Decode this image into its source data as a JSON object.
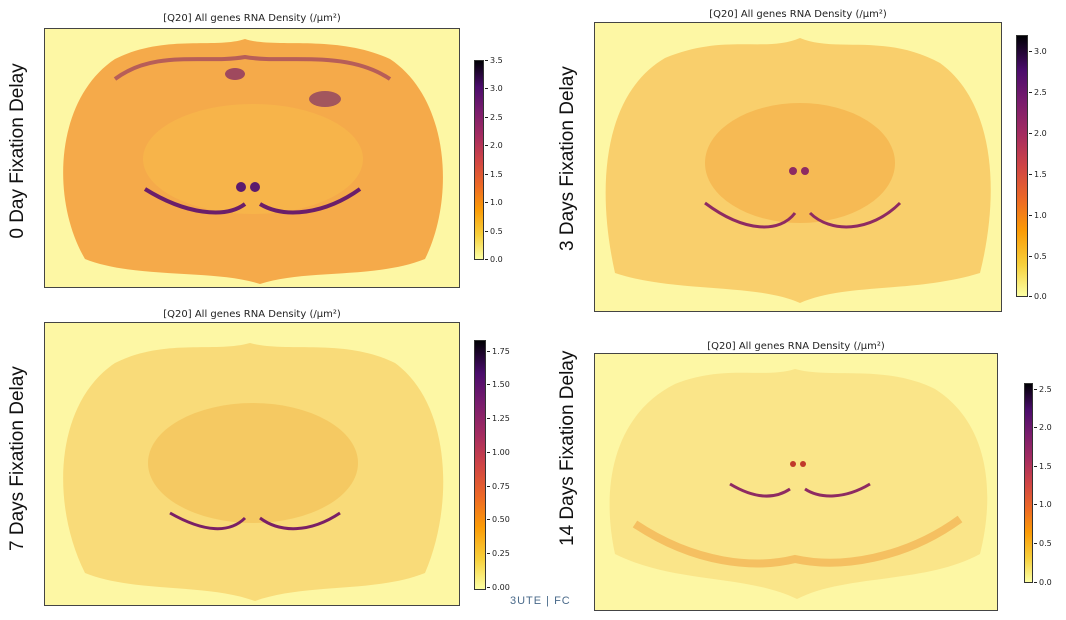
{
  "colors": {
    "background_low": "#fdf7a4",
    "tissue_mid": "#f5a623",
    "tissue_high": "#c0392b",
    "tissue_peak": "#5b1a6e"
  },
  "footer": {
    "text": "3UTE    |    FC"
  },
  "chart_data": [
    {
      "type": "heatmap",
      "title": "[Q20] All genes RNA Density (/µm²)",
      "side_label": "0 Day Fixation Delay",
      "colorbar": {
        "range": [
          0.0,
          3.5
        ],
        "ticks": [
          "0.0",
          "0.5",
          "1.0",
          "1.5",
          "2.0",
          "2.5",
          "3.0",
          "3.5"
        ],
        "colormap": "inferno_r"
      }
    },
    {
      "type": "heatmap",
      "title": "[Q20] All genes RNA Density (/µm²)",
      "side_label": "3 Days Fixation Delay",
      "colorbar": {
        "range": [
          0.0,
          3.2
        ],
        "ticks": [
          "0.0",
          "0.5",
          "1.0",
          "1.5",
          "2.0",
          "2.5",
          "3.0"
        ],
        "colormap": "inferno_r"
      }
    },
    {
      "type": "heatmap",
      "title": "[Q20] All genes RNA Density (/µm²)",
      "side_label": "7 Days Fixation Delay",
      "colorbar": {
        "range": [
          0.0,
          1.85
        ],
        "ticks": [
          "0.00",
          "0.25",
          "0.50",
          "0.75",
          "1.00",
          "1.25",
          "1.50",
          "1.75"
        ],
        "colormap": "inferno_r"
      }
    },
    {
      "type": "heatmap",
      "title": "[Q20] All genes RNA Density (/µm²)",
      "side_label": "14  Days Fixation Delay",
      "colorbar": {
        "range": [
          0.0,
          2.6
        ],
        "ticks": [
          "0.0",
          "0.5",
          "1.0",
          "1.5",
          "2.0",
          "2.5"
        ],
        "colormap": "inferno_r"
      }
    }
  ]
}
